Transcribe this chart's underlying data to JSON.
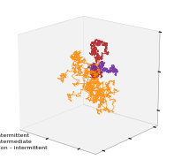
{
  "legend_entries": [
    "Intermittent",
    "Intermediate",
    "Non – intermittent"
  ],
  "colors": {
    "intermittent": "#FF8800",
    "intermediate": "#B22020",
    "non_intermittent": "#7030A0"
  },
  "legend_fontsize": 4.5,
  "linewidth_intermittent": 0.5,
  "linewidth_intermediate": 0.7,
  "linewidth_non": 0.7,
  "seed_intermediate": 17,
  "seed_non_intermittent": 55,
  "seed_intermittent": 42,
  "n_steps_intermediate": 1200,
  "n_steps_non_intermittent": 700,
  "n_steps_intermittent": 1500,
  "view_elev": 18,
  "view_azim": -50
}
